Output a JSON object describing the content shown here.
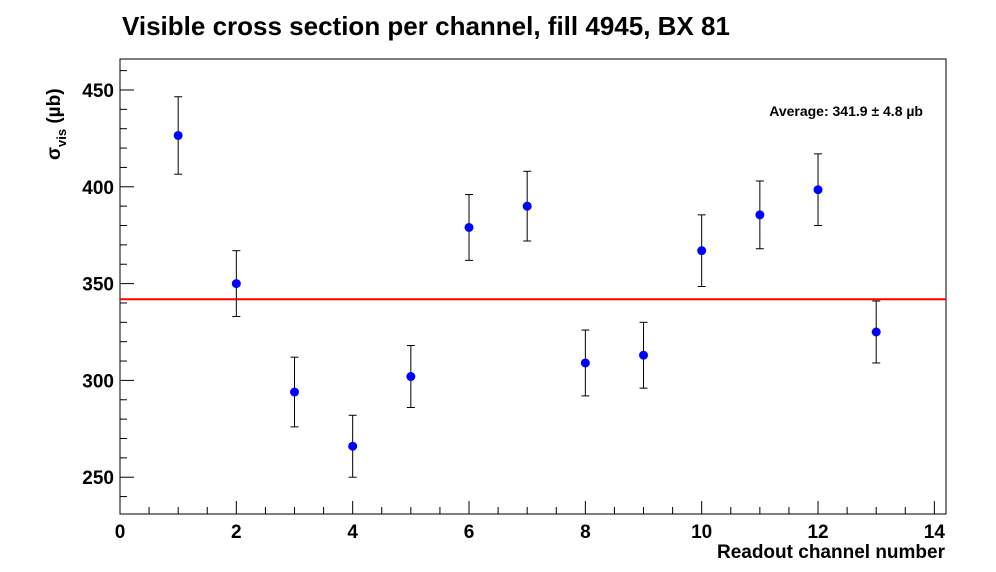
{
  "chart_data": {
    "type": "scatter",
    "title": "Visible cross section per channel, fill 4945, BX 81",
    "xlabel": "Readout channel number",
    "ylabel_main": "σ",
    "ylabel_sub": "vis",
    "ylabel_unit": " (µb)",
    "xlim": [
      0,
      14.2
    ],
    "ylim": [
      231,
      466
    ],
    "x_ticks": [
      0,
      2,
      4,
      6,
      8,
      10,
      12,
      14
    ],
    "y_ticks": [
      250,
      300,
      350,
      400,
      450
    ],
    "grid": false,
    "legend": "none",
    "series": [
      {
        "color": "#0000ff",
        "x": [
          1,
          2,
          3,
          4,
          5,
          6,
          7,
          8,
          9,
          10,
          11,
          12,
          13
        ],
        "y": [
          426.5,
          350,
          294,
          266,
          302,
          379,
          390,
          309,
          313,
          367,
          385.5,
          398.5,
          325
        ],
        "err": [
          20,
          17,
          18,
          16,
          16,
          17,
          18,
          17,
          17,
          18.5,
          17.5,
          18.5,
          16
        ]
      }
    ],
    "average": {
      "value": 341.9,
      "color": "#ff0000",
      "label": "Average: 341.9 ± 4.8 µb"
    }
  }
}
